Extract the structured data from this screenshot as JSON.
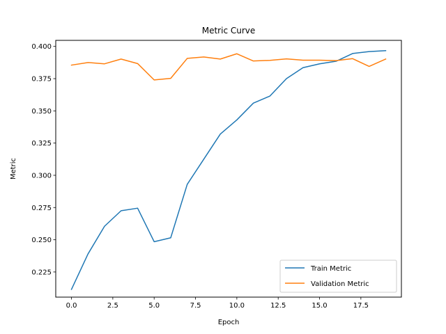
{
  "chart_data": {
    "type": "line",
    "title": "Metric Curve",
    "xlabel": "Epoch",
    "ylabel": "Metric",
    "xlim": [
      -0.95,
      19.95
    ],
    "ylim": [
      0.2055,
      0.4047
    ],
    "x_ticks": [
      0,
      2.5,
      5,
      7.5,
      10,
      12.5,
      15,
      17.5
    ],
    "x_tick_labels": [
      "0.0",
      "2.5",
      "5.0",
      "7.5",
      "10.0",
      "12.5",
      "15.0",
      "17.5"
    ],
    "y_ticks": [
      0.225,
      0.25,
      0.275,
      0.3,
      0.325,
      0.35,
      0.375,
      0.4
    ],
    "y_tick_labels": [
      "0.225",
      "0.250",
      "0.275",
      "0.300",
      "0.325",
      "0.350",
      "0.375",
      "0.400"
    ],
    "grid": false,
    "legend_position": "lower right",
    "x": [
      0,
      1,
      2,
      3,
      4,
      5,
      6,
      7,
      8,
      9,
      10,
      11,
      12,
      13,
      14,
      15,
      16,
      17,
      18,
      19
    ],
    "series": [
      {
        "name": "Train Metric",
        "color": "#1f77b4",
        "values": [
          0.2115,
          0.239,
          0.2605,
          0.2725,
          0.2745,
          0.2485,
          0.2515,
          0.293,
          0.3125,
          0.332,
          0.343,
          0.356,
          0.3615,
          0.375,
          0.3835,
          0.3865,
          0.3885,
          0.3945,
          0.396,
          0.3967
        ]
      },
      {
        "name": "Validation Metric",
        "color": "#ff7f0e",
        "values": [
          0.3855,
          0.3875,
          0.3865,
          0.3902,
          0.3867,
          0.374,
          0.3752,
          0.3907,
          0.3918,
          0.3902,
          0.3943,
          0.3887,
          0.3892,
          0.3903,
          0.3893,
          0.3893,
          0.389,
          0.3905,
          0.3845,
          0.3902
        ]
      }
    ]
  }
}
